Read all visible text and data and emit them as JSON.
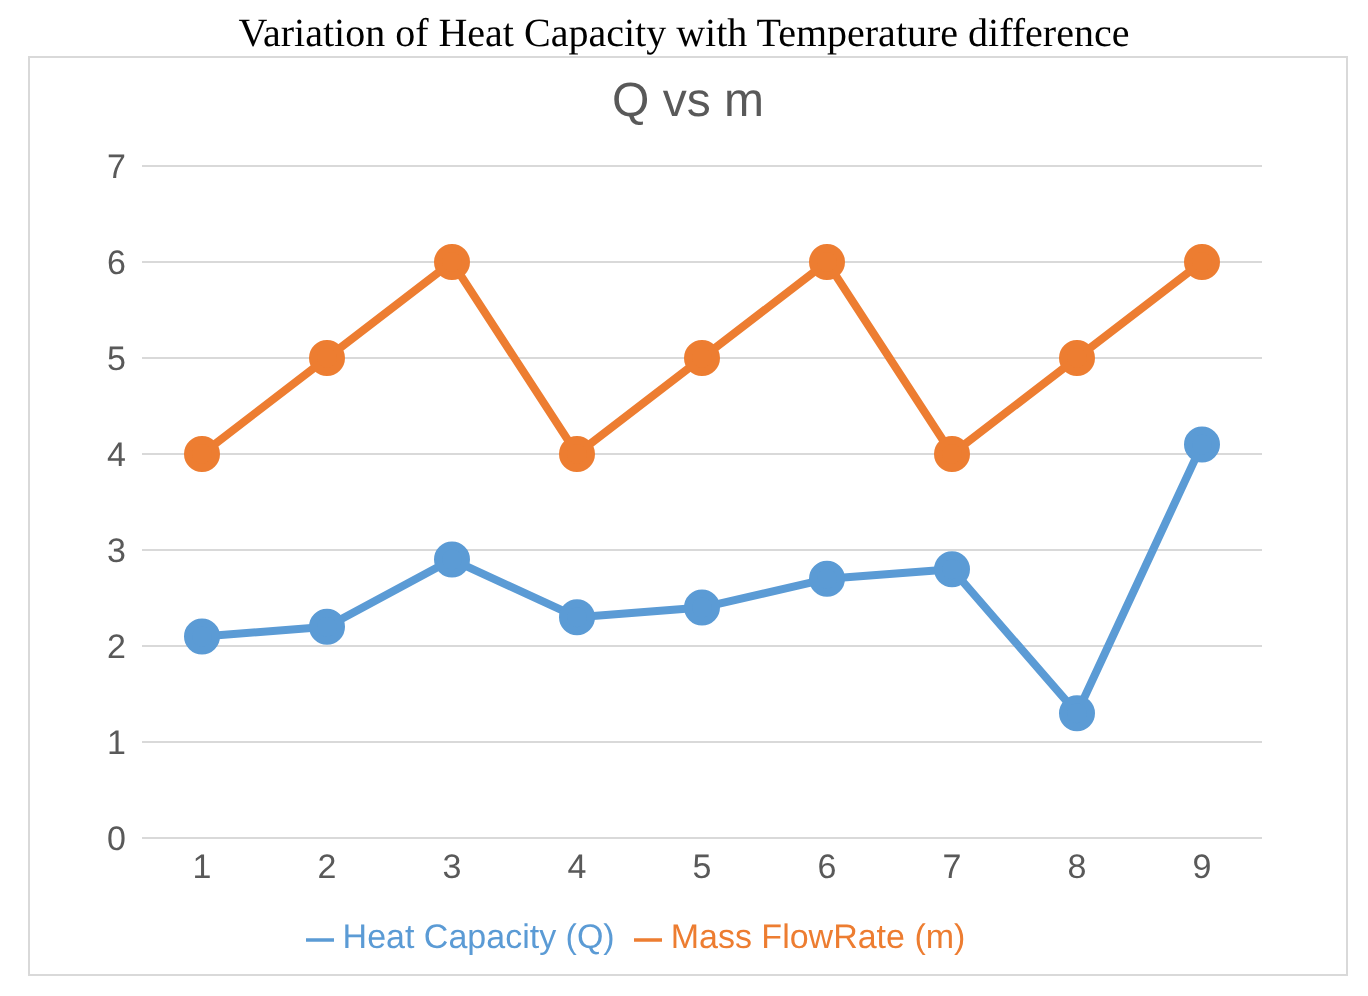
{
  "chart_data": {
    "type": "line",
    "title": "Q vs m",
    "annotations": [
      "Variation of Heat Capacity with Temperature difference"
    ],
    "categories": [
      "1",
      "2",
      "3",
      "4",
      "5",
      "6",
      "7",
      "8",
      "9"
    ],
    "series": [
      {
        "name": "Heat Capacity (Q)",
        "color": "#5b9bd5",
        "values": [
          2.1,
          2.2,
          2.9,
          2.3,
          2.4,
          2.7,
          2.8,
          1.3,
          4.1
        ]
      },
      {
        "name": "Mass FlowRate (m)",
        "color": "#ed7d31",
        "values": [
          4,
          5,
          6,
          4,
          5,
          6,
          4,
          5,
          6
        ]
      }
    ],
    "ylim": [
      0,
      7
    ],
    "yticks": [
      0,
      1,
      2,
      3,
      4,
      5,
      6,
      7
    ],
    "grid": "y",
    "legend": "bottom",
    "marker": "circle",
    "line_style": "solid"
  }
}
